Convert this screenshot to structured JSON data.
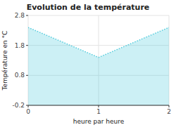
{
  "chart_data": {
    "type": "area",
    "title": "Evolution de la température",
    "x_label": "heure par heure",
    "y_label": "Température en °C",
    "x": [
      0,
      1,
      2
    ],
    "values": [
      2.4,
      1.4,
      2.4
    ],
    "xlim": [
      0,
      2
    ],
    "ylim": [
      -0.2,
      2.8
    ],
    "xticks": [
      0,
      1,
      2
    ],
    "yticks": [
      -0.2,
      0.8,
      1.8,
      2.8
    ],
    "color": "#55ccdd",
    "line_style": "dotted",
    "grid": true
  }
}
